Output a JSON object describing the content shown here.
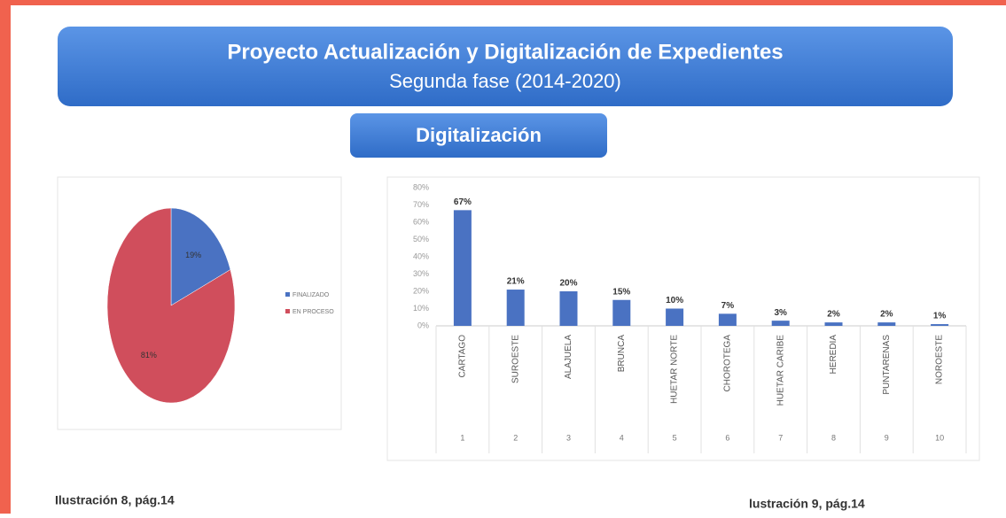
{
  "header": {
    "title": "Proyecto Actualización y Digitalización de Expedientes",
    "subtitle": "Segunda fase (2014-2020)",
    "section": "Digitalización"
  },
  "captions": [
    "Ilustración 8, pág.14",
    "lustración 9, pág.14"
  ],
  "chart_data": [
    {
      "type": "pie",
      "labels": [
        "FINALIZADO",
        "EN PROCESO"
      ],
      "values": [
        19,
        81
      ],
      "value_labels": [
        "19%",
        "81%"
      ],
      "colors": [
        "#4a72c2",
        "#d04e5c"
      ],
      "legend": "right"
    },
    {
      "type": "bar",
      "categories": [
        "CARTAGO",
        "SUROESTE",
        "ALAJUELA",
        "BRUNCA",
        "HUETAR NORTE",
        "CHOROTEGA",
        "HUETAR CARIBE",
        "HEREDIA",
        "PUNTARENAS",
        "NOROESTE"
      ],
      "category_numbers": [
        1,
        2,
        3,
        4,
        5,
        6,
        7,
        8,
        9,
        10
      ],
      "values": [
        67,
        21,
        20,
        15,
        10,
        7,
        3,
        2,
        2,
        1
      ],
      "value_labels": [
        "67%",
        "21%",
        "20%",
        "15%",
        "10%",
        "7%",
        "3%",
        "2%",
        "2%",
        "1%"
      ],
      "color": "#4a72c2",
      "ylim": [
        0,
        80
      ],
      "yticks": [
        {
          "value": 0,
          "label": "0%"
        },
        {
          "value": 10,
          "label": "10%"
        },
        {
          "value": 20,
          "label": "20%"
        },
        {
          "value": 30,
          "label": "30%"
        },
        {
          "value": 40,
          "label": "40%"
        },
        {
          "value": 50,
          "label": "50%"
        },
        {
          "value": 60,
          "label": "60%"
        },
        {
          "value": 70,
          "label": "70%"
        },
        {
          "value": 80,
          "label": "80%"
        }
      ]
    }
  ]
}
